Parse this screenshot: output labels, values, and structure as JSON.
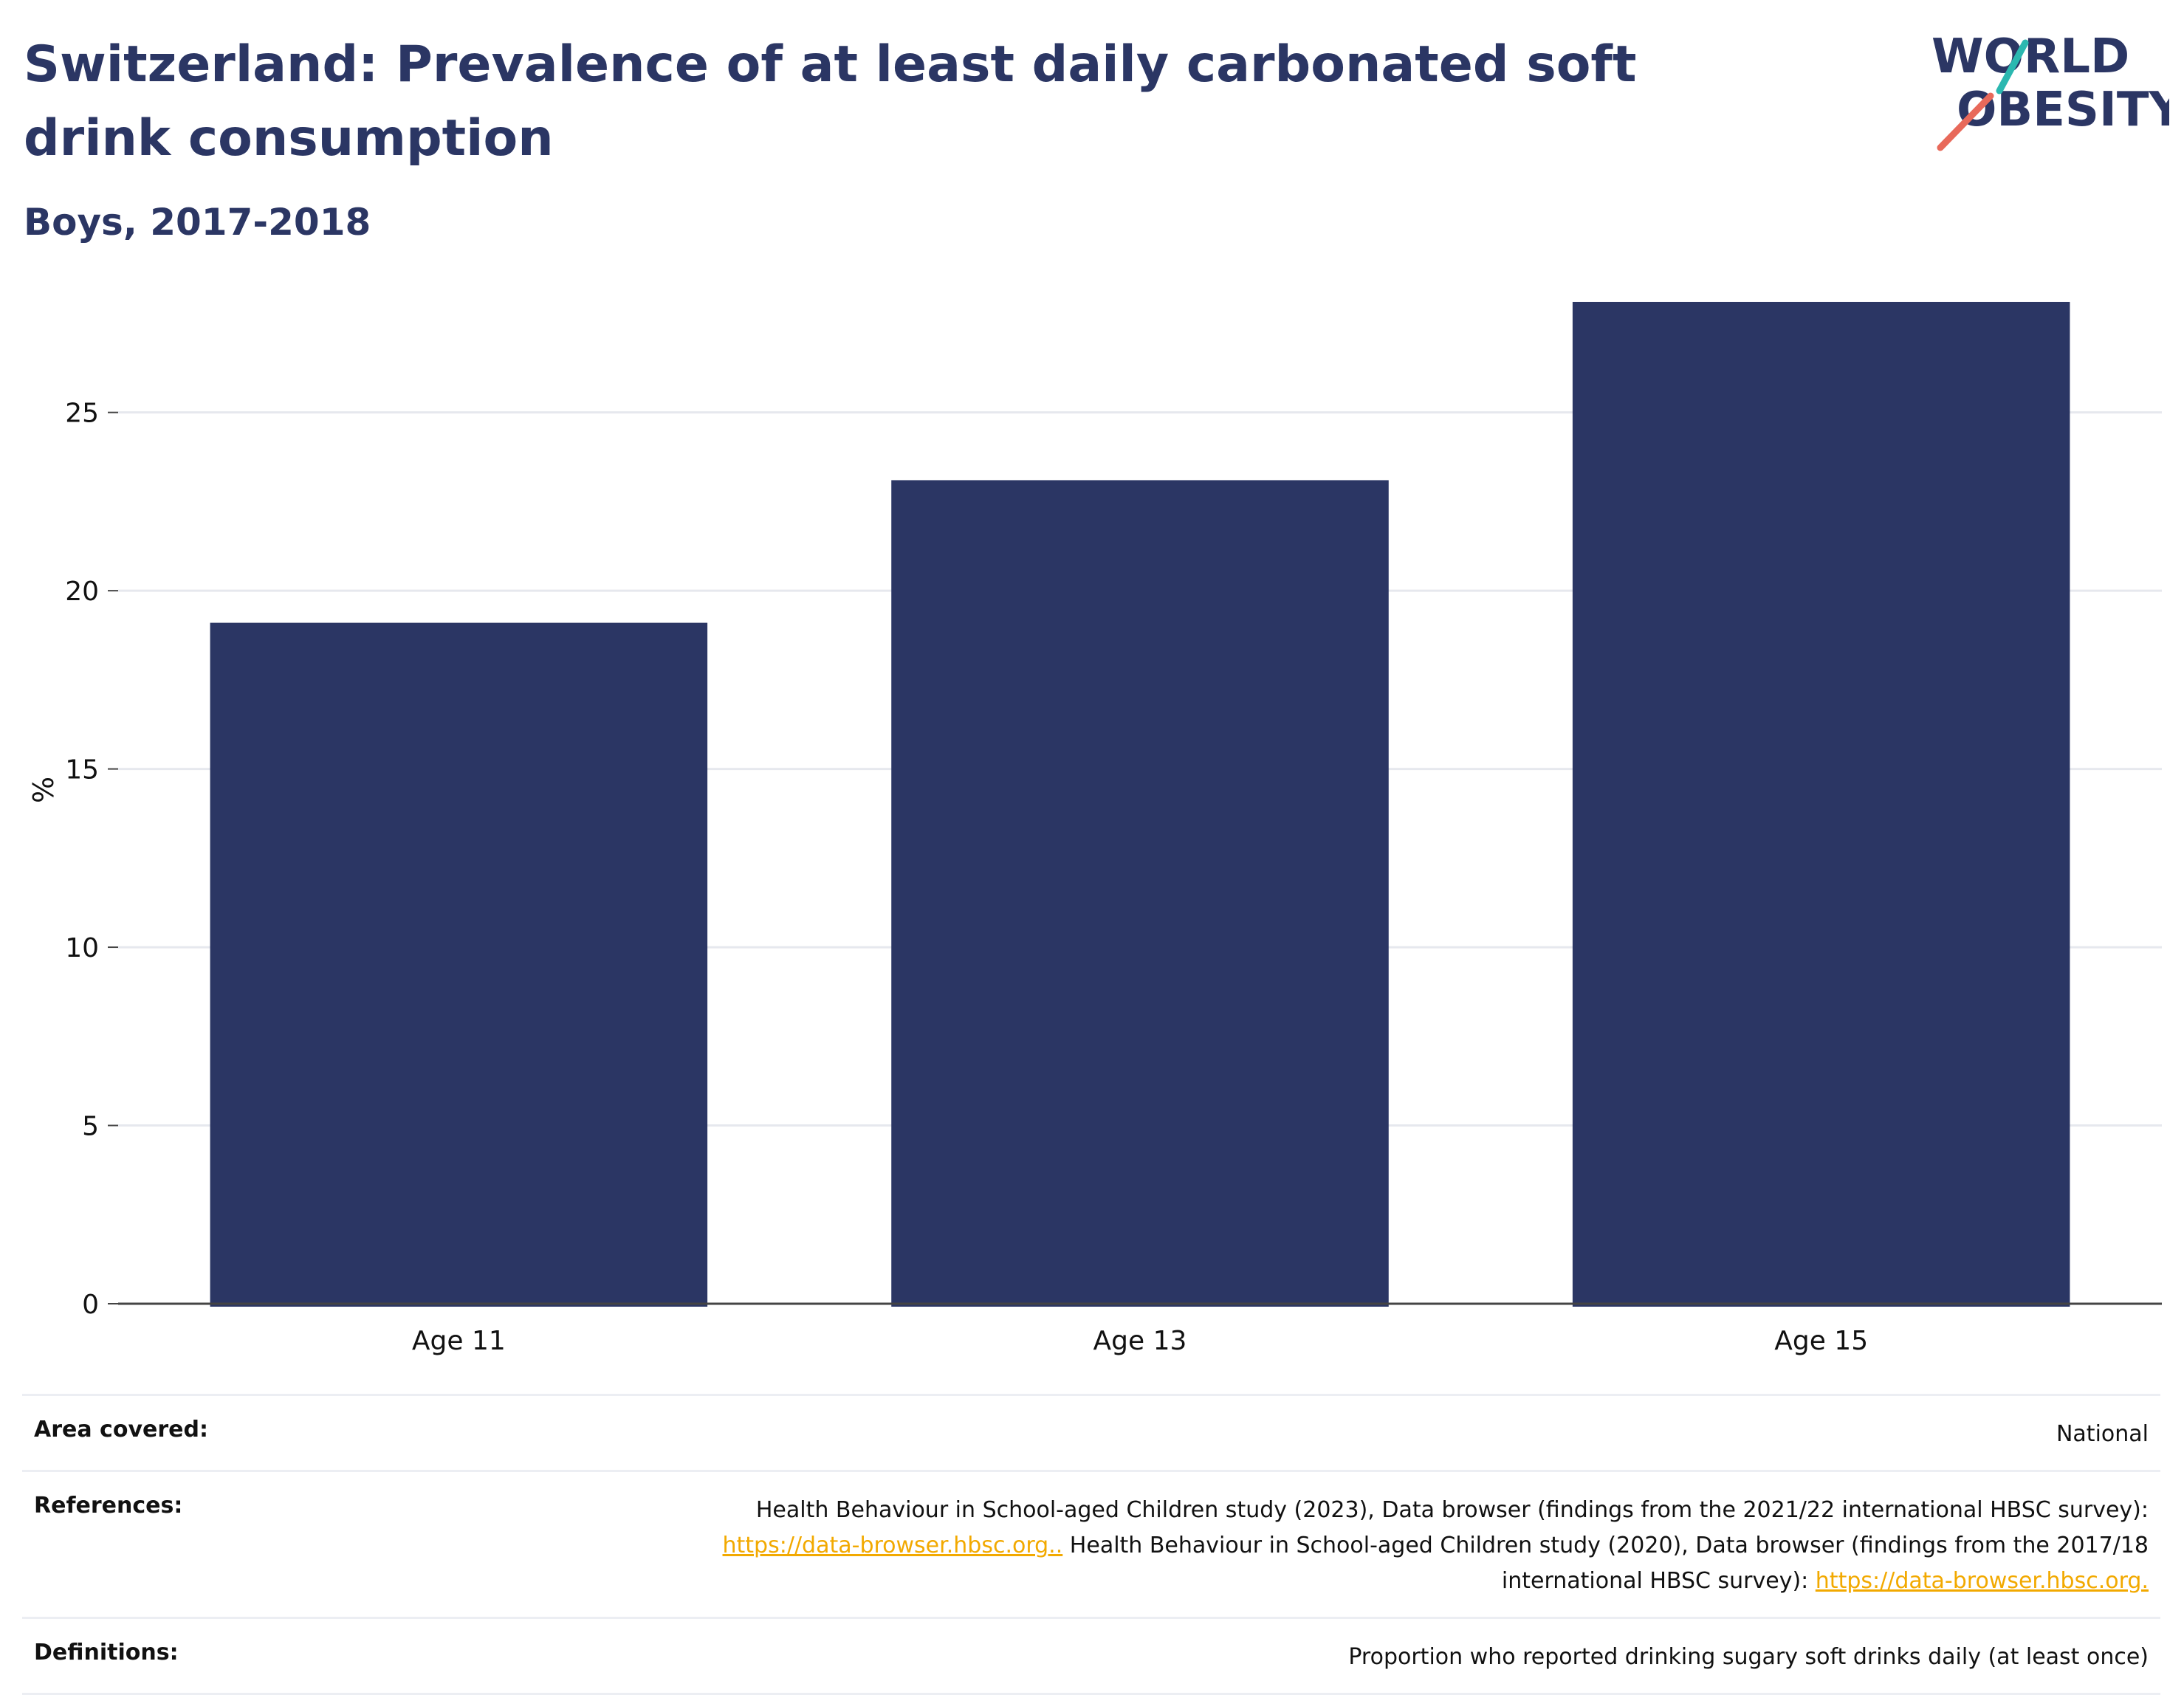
{
  "header": {
    "title": "Switzerland: Prevalence of at least daily carbonated soft drink consumption",
    "subtitle": "Boys, 2017-2018"
  },
  "logo": {
    "line1": "WORLD",
    "line2": "OBESITY",
    "accent_teal": "#2bb8b0",
    "accent_coral": "#e8695a"
  },
  "colors": {
    "bar": "#2b3664",
    "text": "#2b3664",
    "grid": "#e6e8ee",
    "link": "#f2a900"
  },
  "chart_data": {
    "type": "bar",
    "categories": [
      "Age 11",
      "Age 13",
      "Age 15"
    ],
    "values": [
      19.1,
      23.1,
      28.1
    ],
    "ylabel": "%",
    "xlabel": "",
    "ylim": [
      0,
      28.7
    ],
    "yticks": [
      0,
      5,
      10,
      15,
      20,
      25
    ],
    "grid": true
  },
  "info": {
    "area_label": "Area covered:",
    "area_value": "National",
    "references_label": "References:",
    "references_text1": "Health Behaviour in School-aged Children study (2023), Data browser (findings from the 2021/22 international HBSC survey):",
    "references_link1": "https://data-browser.hbsc.org..",
    "references_text2": " Health Behaviour in School-aged Children study (2020), Data browser (findings from the 2017/18 international HBSC survey): ",
    "references_link2": "https://data-browser.hbsc.org.",
    "definitions_label": "Definitions:",
    "definitions_value": "Proportion who reported drinking sugary soft drinks daily (at least once)"
  }
}
